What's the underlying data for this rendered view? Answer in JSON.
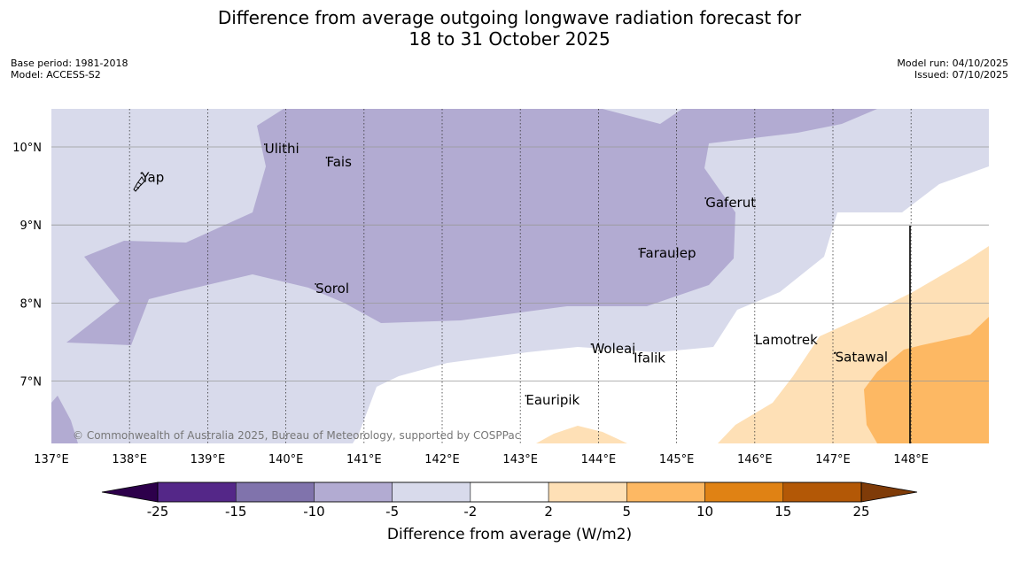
{
  "header": {
    "title_line1": "Difference from average outgoing longwave radiation forecast for",
    "title_line2": "18 to 31 October 2025",
    "base_period": "Base period: 1981-2018",
    "model": "Model: ACCESS-S2",
    "model_run": "Model run: 04/10/2025",
    "issued": "Issued: 07/10/2025"
  },
  "map": {
    "longitudes": [
      137,
      138,
      139,
      140,
      141,
      142,
      143,
      144,
      145,
      146,
      147,
      148
    ],
    "lon_labels": [
      "137°E",
      "138°E",
      "139°E",
      "140°E",
      "141°E",
      "142°E",
      "143°E",
      "144°E",
      "145°E",
      "146°E",
      "147°E",
      "148°E"
    ],
    "latitudes": [
      10,
      9,
      8,
      7
    ],
    "lat_labels": [
      "10°N",
      "9°N",
      "8°N",
      "7°N"
    ],
    "places": [
      {
        "name": "Yap",
        "lon": 138.15,
        "lat": 9.55
      },
      {
        "name": "Ulithi",
        "lon": 139.73,
        "lat": 9.92
      },
      {
        "name": "Fais",
        "lon": 140.52,
        "lat": 9.75
      },
      {
        "name": "Gaferut",
        "lon": 145.37,
        "lat": 9.23
      },
      {
        "name": "Faraulep",
        "lon": 144.52,
        "lat": 8.58
      },
      {
        "name": "Sorol",
        "lon": 140.38,
        "lat": 8.13
      },
      {
        "name": "Lamotrek",
        "lon": 146.0,
        "lat": 7.47
      },
      {
        "name": "Satawal",
        "lon": 147.03,
        "lat": 7.25
      },
      {
        "name": "Woleai",
        "lon": 143.91,
        "lat": 7.36
      },
      {
        "name": "Ifalik",
        "lon": 144.45,
        "lat": 7.24
      },
      {
        "name": "Eauripik",
        "lon": 143.07,
        "lat": 6.7
      }
    ],
    "copyright": "© Commonwealth of Australia 2025, Bureau of Meteorology, supported by COSPPac"
  },
  "colorbar": {
    "ticks": [
      "-25",
      "-15",
      "-10",
      "-5",
      "-2",
      "2",
      "5",
      "10",
      "15",
      "25"
    ],
    "colors": [
      "#542788",
      "#8073ac",
      "#b2abd2",
      "#d8daeb",
      "#ffffff",
      "#fee0b6",
      "#fdb863",
      "#e08214",
      "#b35806"
    ],
    "under_color": "#2d004b",
    "over_color": "#7f3b08",
    "label": "Difference from average (W/m2)"
  }
}
